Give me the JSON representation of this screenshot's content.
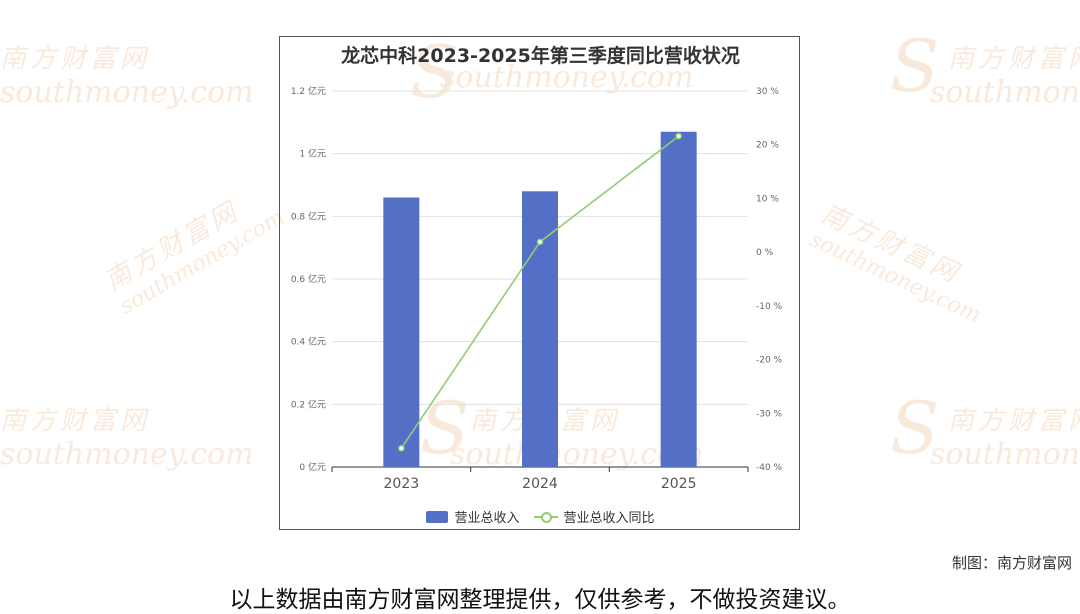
{
  "watermark": {
    "cn": "南方财富网",
    "en": "southmoney.com",
    "s": "S"
  },
  "chart_data": {
    "type": "bar",
    "title": "龙芯中科2023-2025年第三季度同比营收状况",
    "categories": [
      "2023",
      "2024",
      "2025"
    ],
    "series": [
      {
        "name": "营业总收入",
        "type": "bar",
        "axis": "left",
        "values": [
          86000000,
          88000000,
          107000000
        ],
        "color": "#5470c6"
      },
      {
        "name": "营业总收入同比",
        "type": "line",
        "axis": "right",
        "values": [
          -36.5,
          1.9,
          21.6
        ],
        "color": "#91cc75"
      }
    ],
    "y_left": {
      "unit": "亿元",
      "ylim": [
        0,
        1.2
      ],
      "ticks": [
        0,
        0.2,
        0.4,
        0.6,
        0.8,
        1,
        1.2
      ],
      "tick_labels": [
        "0 亿元",
        "0.2 亿元",
        "0.4 亿元",
        "0.6 亿元",
        "0.8 亿元",
        "1 亿元",
        "1.2 亿元"
      ]
    },
    "y_right": {
      "unit": "%",
      "ylim": [
        -40,
        30
      ],
      "ticks": [
        -40,
        -30,
        -20,
        -10,
        0,
        10,
        20,
        30
      ],
      "tick_labels": [
        "-40 %",
        "-30 %",
        "-20 %",
        "-10 %",
        "0 %",
        "10 %",
        "20 %",
        "30 %"
      ]
    },
    "grid": true,
    "legend_position": "bottom"
  },
  "credit": "制图：南方财富网",
  "footer_note": "以上数据由南方财富网整理提供，仅供参考，不做投资建议。"
}
